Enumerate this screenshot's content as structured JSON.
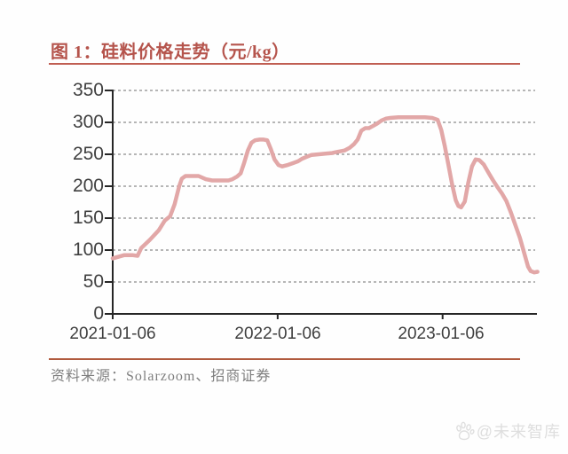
{
  "header": {
    "title": "图 1：硅料价格走势（元/kg）"
  },
  "footer": {
    "source": "资料来源：Solarzoom、招商证券",
    "watermark": "@未来智库"
  },
  "colors": {
    "title": "#b5544c",
    "title_rule": "#c05e52",
    "source_rule": "#b05a3e",
    "line": "#e2a7a7",
    "gridline": "#8c8c8c",
    "axis": "#262626",
    "tick_label": "#3f3f3f",
    "watermark": "#dedede"
  },
  "chart_data": {
    "type": "line",
    "title": "硅料价格走势（元/kg）",
    "xlabel": "",
    "ylabel": "",
    "ylim": [
      0,
      350
    ],
    "grid": "dashed-horizontal",
    "legend": "none",
    "x_origin": "2021-01-06",
    "y_ticks": [
      "350",
      "300",
      "250",
      "200",
      "150",
      "100",
      "50",
      "0"
    ],
    "y_tick_values": [
      350,
      300,
      250,
      200,
      150,
      100,
      50,
      0
    ],
    "x_tick_labels": [
      "2021-01-06",
      "2022-01-06",
      "2023-01-06"
    ],
    "x_tick_dates": [
      "2021-01-06",
      "2022-01-06",
      "2023-01-06"
    ],
    "series_name": "硅料价格 (元/kg)",
    "points": [
      [
        "2021-01-06",
        87
      ],
      [
        "2021-01-31",
        92
      ],
      [
        "2021-02-20",
        92
      ],
      [
        "2021-03-02",
        91
      ],
      [
        "2021-03-10",
        103
      ],
      [
        "2021-03-29",
        116
      ],
      [
        "2021-04-18",
        131
      ],
      [
        "2021-05-01",
        146
      ],
      [
        "2021-05-13",
        153
      ],
      [
        "2021-05-23",
        172
      ],
      [
        "2021-06-02",
        200
      ],
      [
        "2021-06-08",
        212
      ],
      [
        "2021-06-16",
        216
      ],
      [
        "2021-07-02",
        216
      ],
      [
        "2021-07-15",
        216
      ],
      [
        "2021-07-31",
        211
      ],
      [
        "2021-08-14",
        209
      ],
      [
        "2021-08-28",
        209
      ],
      [
        "2021-09-07",
        209
      ],
      [
        "2021-09-19",
        209
      ],
      [
        "2021-09-28",
        211
      ],
      [
        "2021-10-08",
        215
      ],
      [
        "2021-10-16",
        220
      ],
      [
        "2021-10-24",
        237
      ],
      [
        "2021-11-01",
        256
      ],
      [
        "2021-11-09",
        268
      ],
      [
        "2021-11-17",
        272
      ],
      [
        "2021-11-27",
        273
      ],
      [
        "2021-12-06",
        273
      ],
      [
        "2021-12-14",
        272
      ],
      [
        "2021-12-22",
        258
      ],
      [
        "2021-12-30",
        242
      ],
      [
        "2022-01-08",
        233
      ],
      [
        "2022-01-16",
        231
      ],
      [
        "2022-01-27",
        233
      ],
      [
        "2022-02-08",
        236
      ],
      [
        "2022-02-20",
        239
      ],
      [
        "2022-03-01",
        243
      ],
      [
        "2022-03-11",
        246
      ],
      [
        "2022-03-22",
        249
      ],
      [
        "2022-04-07",
        250
      ],
      [
        "2022-04-22",
        251
      ],
      [
        "2022-05-06",
        252
      ],
      [
        "2022-05-20",
        254
      ],
      [
        "2022-06-03",
        256
      ],
      [
        "2022-06-14",
        260
      ],
      [
        "2022-06-24",
        266
      ],
      [
        "2022-07-02",
        273
      ],
      [
        "2022-07-10",
        287
      ],
      [
        "2022-07-19",
        291
      ],
      [
        "2022-07-27",
        291
      ],
      [
        "2022-08-04",
        294
      ],
      [
        "2022-08-14",
        298
      ],
      [
        "2022-08-24",
        303
      ],
      [
        "2022-09-03",
        306
      ],
      [
        "2022-09-12",
        307
      ],
      [
        "2022-09-30",
        308
      ],
      [
        "2022-10-20",
        308
      ],
      [
        "2022-11-09",
        308
      ],
      [
        "2022-11-28",
        308
      ],
      [
        "2022-12-14",
        307
      ],
      [
        "2022-12-26",
        304
      ],
      [
        "2023-01-03",
        288
      ],
      [
        "2023-01-11",
        262
      ],
      [
        "2023-01-19",
        233
      ],
      [
        "2023-01-27",
        203
      ],
      [
        "2023-02-04",
        178
      ],
      [
        "2023-02-10",
        169
      ],
      [
        "2023-02-16",
        167
      ],
      [
        "2023-02-24",
        176
      ],
      [
        "2023-03-04",
        206
      ],
      [
        "2023-03-12",
        231
      ],
      [
        "2023-03-20",
        242
      ],
      [
        "2023-03-28",
        241
      ],
      [
        "2023-04-07",
        234
      ],
      [
        "2023-04-17",
        222
      ],
      [
        "2023-04-27",
        210
      ],
      [
        "2023-05-07",
        199
      ],
      [
        "2023-05-17",
        189
      ],
      [
        "2023-05-27",
        177
      ],
      [
        "2023-06-06",
        159
      ],
      [
        "2023-06-16",
        139
      ],
      [
        "2023-06-26",
        119
      ],
      [
        "2023-07-06",
        94
      ],
      [
        "2023-07-14",
        74
      ],
      [
        "2023-07-20",
        67
      ],
      [
        "2023-07-28",
        65
      ],
      [
        "2023-08-04",
        66
      ]
    ]
  },
  "layout_note": ""
}
